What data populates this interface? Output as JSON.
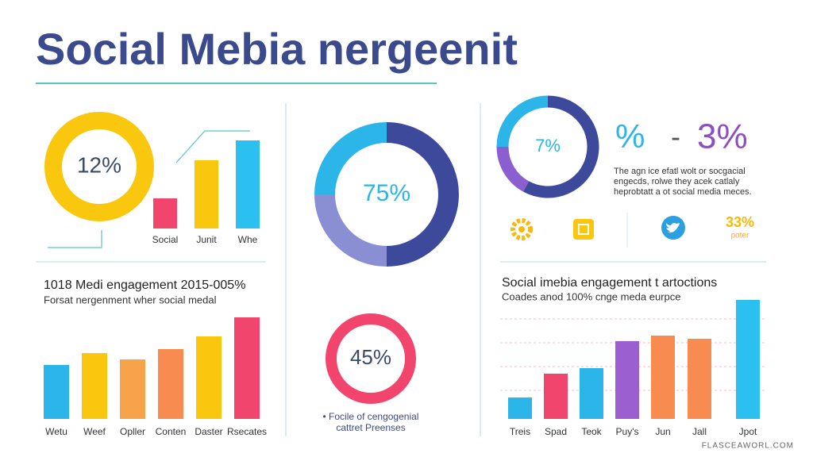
{
  "header": {
    "title": "Social Mebia nergeenit"
  },
  "stats": {
    "pct_a": "%",
    "dash": "-",
    "pct_b": "3%",
    "lines": [
      "The agn ice efatl wolt or socgacial",
      "engecds, rolwe they acek catlaly",
      "heprobtatt a ot social media meces."
    ],
    "big": "33%",
    "small": "poter"
  },
  "footer": "FLASCEAWORL.COM",
  "chart_data": [
    {
      "type": "ring",
      "center_label": "12%",
      "color": "#f9c80e"
    },
    {
      "type": "bar",
      "categories": [
        "Social",
        "Junit",
        "Whe"
      ],
      "values": [
        38,
        86,
        111
      ],
      "colors": [
        "#f2456e",
        "#f9c80e",
        "#2bc0ef"
      ],
      "ylim": [
        0,
        120
      ]
    },
    {
      "type": "donut",
      "center_label": "75%",
      "values": [
        50,
        25,
        25
      ],
      "colors": [
        "#3d4a9c",
        "#8a8fd3",
        "#2bb5e8"
      ]
    },
    {
      "type": "ring",
      "center_label": "45%",
      "color": "#f2456e",
      "caption": [
        "• Focile of cengogenial",
        "cattret Preenses"
      ]
    },
    {
      "type": "donut",
      "center_label": "7%",
      "values": [
        58,
        17,
        25
      ],
      "colors": [
        "#3d4a9c",
        "#8b5fd0",
        "#2bb5e8"
      ]
    },
    {
      "type": "bar",
      "title": "1018 Medi engagement 2015-005%",
      "subtitle": "Forsat nergenment wher social medal",
      "categories": [
        "Wetu",
        "Weef",
        "Opller",
        "Conten",
        "Daster",
        "Rsecates"
      ],
      "values": [
        68,
        83,
        75,
        88,
        104,
        128
      ],
      "colors": [
        "#2bb5e8",
        "#f9c80e",
        "#f7a34a",
        "#f78b50",
        "#f9c80e",
        "#f2456e"
      ],
      "ylim": [
        0,
        130
      ]
    },
    {
      "type": "bar",
      "title": "Social imebia engagement t artoctions",
      "subtitle": "Coades anod 100% cnge meda eurpce",
      "categories": [
        "Treis",
        "Spad",
        "Teok",
        "Puy's",
        "Jun",
        "Jall",
        "Jpot"
      ],
      "values": [
        27,
        57,
        64,
        98,
        105,
        101,
        150
      ],
      "colors": [
        "#2bb5e8",
        "#f2456e",
        "#2bb5e8",
        "#9b5fd0",
        "#f78b50",
        "#f78b50",
        "#2bc0ef"
      ],
      "ylim": [
        0,
        150
      ]
    }
  ]
}
